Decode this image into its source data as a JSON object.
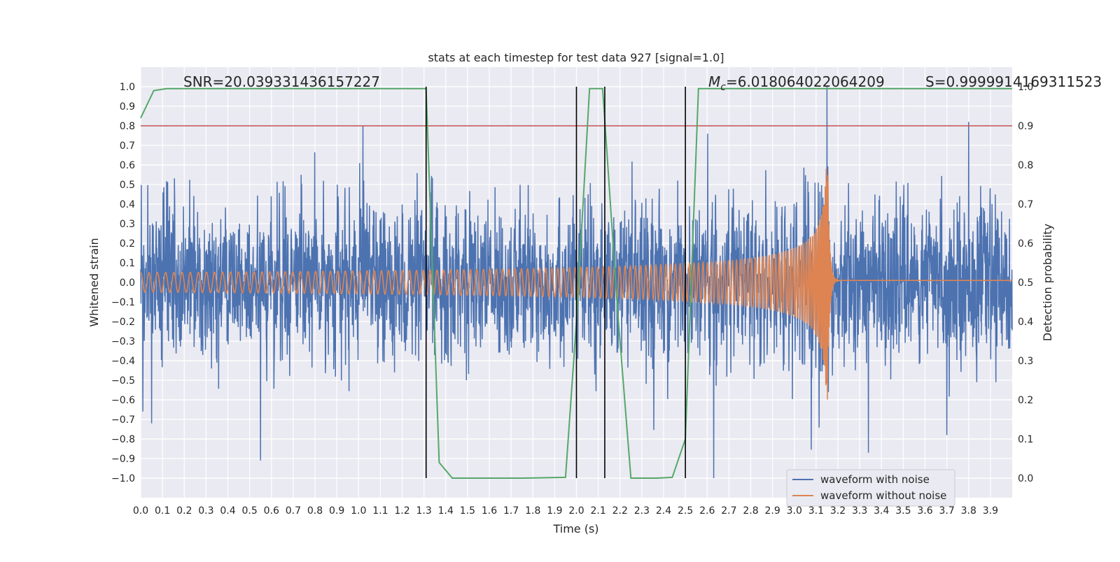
{
  "chart_data": {
    "type": "line",
    "title": "stats at each timestep for test data 927 [signal=1.0]",
    "xlabel": "Time (s)",
    "ylabel": "Whitened strain",
    "y2label": "Detection probability",
    "xlim": [
      0.0,
      4.0
    ],
    "ylim": [
      -1.1,
      1.1
    ],
    "y2lim": [
      -0.05,
      1.05
    ],
    "x_ticks": [
      0.0,
      0.1,
      0.2,
      0.3,
      0.4,
      0.5,
      0.6,
      0.7,
      0.8,
      0.9,
      1.0,
      1.1,
      1.2,
      1.3,
      1.4,
      1.5,
      1.6,
      1.7,
      1.8,
      1.9,
      2.0,
      2.1,
      2.2,
      2.3,
      2.4,
      2.5,
      2.6,
      2.7,
      2.8,
      2.9,
      3.0,
      3.1,
      3.2,
      3.3,
      3.4,
      3.5,
      3.6,
      3.7,
      3.8,
      3.9
    ],
    "x_tick_labels": [
      "0.0",
      "0.1",
      "0.2",
      "0.3",
      "0.4",
      "0.5",
      "0.6",
      "0.7",
      "0.8",
      "0.9",
      "1.0",
      "1.1",
      "1.2",
      "1.3",
      "1.4",
      "1.5",
      "1.6",
      "1.7",
      "1.8",
      "1.9",
      "2.0",
      "2.1",
      "2.2",
      "2.3",
      "2.4",
      "2.5",
      "2.6",
      "2.7",
      "2.8",
      "2.9",
      "3.0",
      "3.1",
      "3.2",
      "3.3",
      "3.4",
      "3.5",
      "3.6",
      "3.7",
      "3.8",
      "3.9"
    ],
    "y_ticks": [
      1.0,
      0.9,
      0.8,
      0.7,
      0.6,
      0.5,
      0.4,
      0.3,
      0.2,
      0.1,
      0.0,
      -0.1,
      -0.2,
      -0.3,
      -0.4,
      -0.5,
      -0.6,
      -0.7,
      -0.8,
      -0.9,
      -1.0
    ],
    "y_tick_labels": [
      "1.0",
      "0.9",
      "0.8",
      "0.7",
      "0.6",
      "0.5",
      "0.4",
      "0.3",
      "0.2",
      "0.1",
      "0.0",
      "−0.1",
      "−0.2",
      "−0.3",
      "−0.4",
      "−0.5",
      "−0.6",
      "−0.7",
      "−0.8",
      "−0.9",
      "−1.0"
    ],
    "y2_ticks": [
      1.0,
      0.9,
      0.8,
      0.7,
      0.6,
      0.5,
      0.4,
      0.3,
      0.2,
      0.1,
      0.0
    ],
    "y2_tick_labels": [
      "1.0",
      "0.9",
      "0.8",
      "0.7",
      "0.6",
      "0.5",
      "0.4",
      "0.3",
      "0.2",
      "0.1",
      "0.0"
    ],
    "annotations": {
      "snr": "SNR=20.039331436157227",
      "mc": "M",
      "mc_sub": "c",
      "mc_value": "=6.018064022064209",
      "s": "S=0.9999914169311523"
    },
    "legend": {
      "location": "lower-right",
      "entries": [
        {
          "label": "waveform with noise",
          "color": "#4c72b0"
        },
        {
          "label": "waveform without noise",
          "color": "#dd8452"
        }
      ]
    },
    "threshold_line": {
      "y": 0.9,
      "axis": "right",
      "color": "#c44e52"
    },
    "vertical_lines": {
      "x": [
        1.31,
        2.0,
        2.13,
        2.5
      ],
      "color": "#000000"
    },
    "detection_probability": {
      "color": "#55a868",
      "x": [
        0.0,
        0.06,
        0.12,
        0.18,
        0.25,
        0.5,
        0.75,
        1.0,
        1.25,
        1.31,
        1.37,
        1.43,
        1.5,
        1.75,
        1.95,
        2.0,
        2.06,
        2.12,
        2.19,
        2.25,
        2.31,
        2.37,
        2.44,
        2.5,
        2.56,
        2.62,
        2.75,
        3.0,
        3.25,
        3.5,
        3.75,
        4.0
      ],
      "y": [
        0.92,
        0.99,
        0.995,
        0.995,
        0.995,
        0.995,
        0.995,
        0.995,
        0.995,
        0.995,
        0.04,
        0.0,
        0.0,
        0.0,
        0.002,
        0.4,
        0.995,
        0.995,
        0.42,
        0.0,
        0.0,
        0.0,
        0.002,
        0.1,
        0.995,
        0.995,
        0.995,
        0.995,
        0.995,
        0.995,
        0.995,
        0.995
      ]
    },
    "noisy_waveform": {
      "color": "#4c72b0",
      "noise_amplitude": 0.3,
      "notable_spikes": [
        {
          "x": 0.01,
          "y": -0.66
        },
        {
          "x": 0.05,
          "y": -0.72
        },
        {
          "x": 0.55,
          "y": -0.91
        },
        {
          "x": 1.02,
          "y": 0.8
        },
        {
          "x": 2.63,
          "y": -1.0
        },
        {
          "x": 3.15,
          "y": 1.0
        },
        {
          "x": 3.8,
          "y": 0.82
        },
        {
          "x": 3.7,
          "y": -0.78
        },
        {
          "x": 3.34,
          "y": -0.87
        }
      ]
    },
    "clean_waveform": {
      "color": "#dd8452",
      "amplitude_start": 0.05,
      "amplitude_peak": 0.6,
      "merger_time": 3.155,
      "start_cycles_per_second": 26
    }
  }
}
